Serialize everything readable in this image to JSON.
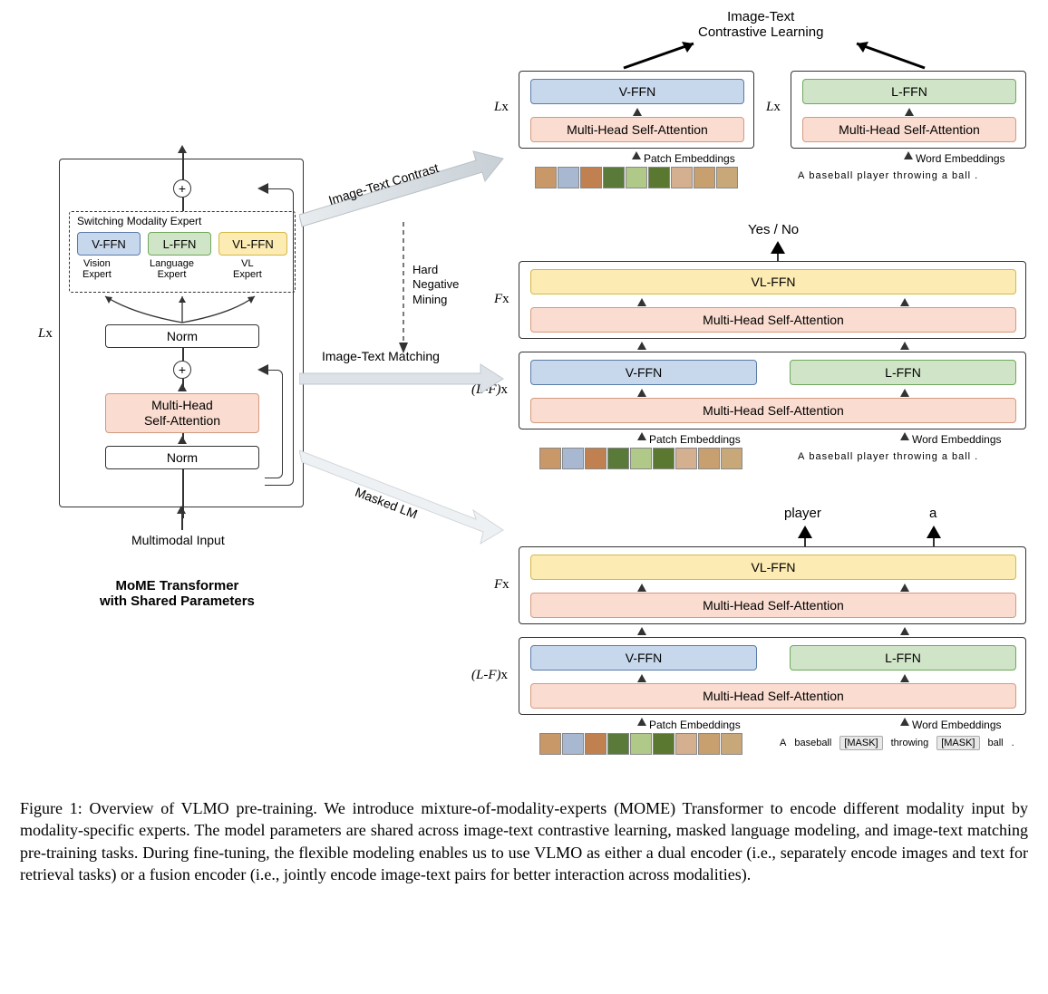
{
  "colors": {
    "vffn": "#c8d8ec",
    "vffn_border": "#5b7ba8",
    "lffn": "#d0e5c7",
    "lffn_border": "#6fa85b",
    "vlffn": "#fcebb3",
    "vlffn_border": "#d4b847",
    "mhsa": "#fadcd0",
    "mhsa_border": "#d49a7f",
    "gray_arrow": "#d8dee3"
  },
  "top_label": {
    "line1": "Image-Text",
    "line2": "Contrastive Learning"
  },
  "left_block": {
    "switching_label": "Switching Modality Expert",
    "vffn": "V-FFN",
    "vffn_sub": "Vision\nExpert",
    "lffn": "L-FFN",
    "lffn_sub": "Language\nExpert",
    "vlffn": "VL-FFN",
    "vlffn_sub": "VL\nExpert",
    "norm": "Norm",
    "mhsa_line1": "Multi-Head",
    "mhsa_line2": "Self-Attention",
    "input_label": "Multimodal Input",
    "L_label": "L",
    "x_label": "x",
    "title_line1": "MoME Transformer",
    "title_line2": "with Shared Parameters"
  },
  "branches": {
    "contrast_label": "Image-Text Contrast",
    "matching_label": "Image-Text Matching",
    "mlm_label": "Masked LM",
    "hard_neg_line1": "Hard",
    "hard_neg_line2": "Negative",
    "hard_neg_line3": "Mining",
    "yes_no": "Yes / No",
    "player": "player",
    "a_word": "a"
  },
  "blocks": {
    "vffn": "V-FFN",
    "lffn": "L-FFN",
    "vlffn": "VL-FFN",
    "mhsa": "Multi-Head Self-Attention",
    "patch_emb": "Patch Embeddings",
    "word_emb": "Word Embeddings",
    "L": "L",
    "x": "x",
    "F": "F",
    "LF_prefix": "(",
    "LF_mid": "-",
    "LF_suffix": ")"
  },
  "sentence": {
    "words": [
      "A",
      "baseball",
      "player",
      "throwing",
      "a",
      "ball",
      "."
    ],
    "mlm_words": [
      "A",
      "baseball",
      "[MASK]",
      "throwing",
      "[MASK]",
      "ball",
      "."
    ]
  },
  "patch_colors": [
    "#c89868",
    "#a8b8d0",
    "#c08050",
    "#5a7a3a",
    "#b0c888",
    "#5a7830",
    "#d4b090",
    "#c8a070",
    "#c8a878"
  ],
  "caption": "Figure 1: Overview of VLMO pre-training. We introduce mixture-of-modality-experts (MOME) Transformer to encode different modality input by modality-specific experts. The model parameters are shared across image-text contrastive learning, masked language modeling, and image-text matching pre-training tasks. During fine-tuning, the flexible modeling enables us to use VLMO as either a dual encoder (i.e., separately encode images and text for retrieval tasks) or a fusion encoder (i.e., jointly encode image-text pairs for better interaction across modalities)."
}
